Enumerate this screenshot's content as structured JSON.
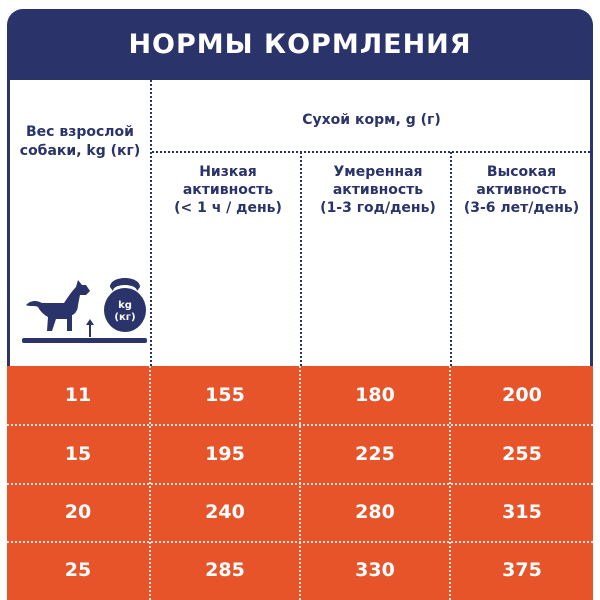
{
  "header": {
    "title": "НОРМЫ КОРМЛЕНИЯ"
  },
  "columns": {
    "weight_label": "Вес взрослой собаки, kg (кг)",
    "dry_food_label": "Сухой корм, g (г)",
    "activity": [
      {
        "line1": "Низкая",
        "line2": "активность",
        "line3": "(< 1 ч / день)"
      },
      {
        "line1": "Умеренная",
        "line2": "активность",
        "line3": "(1-3 год/день)"
      },
      {
        "line1": "Высокая",
        "line2": "активность",
        "line3": "(3-6 лет/день)"
      }
    ]
  },
  "icon": {
    "weight_label": "kg",
    "weight_label2": "(кг)"
  },
  "rows": [
    [
      "11",
      "155",
      "180",
      "200"
    ],
    [
      "15",
      "195",
      "225",
      "255"
    ],
    [
      "20",
      "240",
      "280",
      "315"
    ],
    [
      "25",
      "285",
      "330",
      "375"
    ]
  ],
  "colors": {
    "navy": "#2a336a",
    "orange": "#e8542a"
  }
}
